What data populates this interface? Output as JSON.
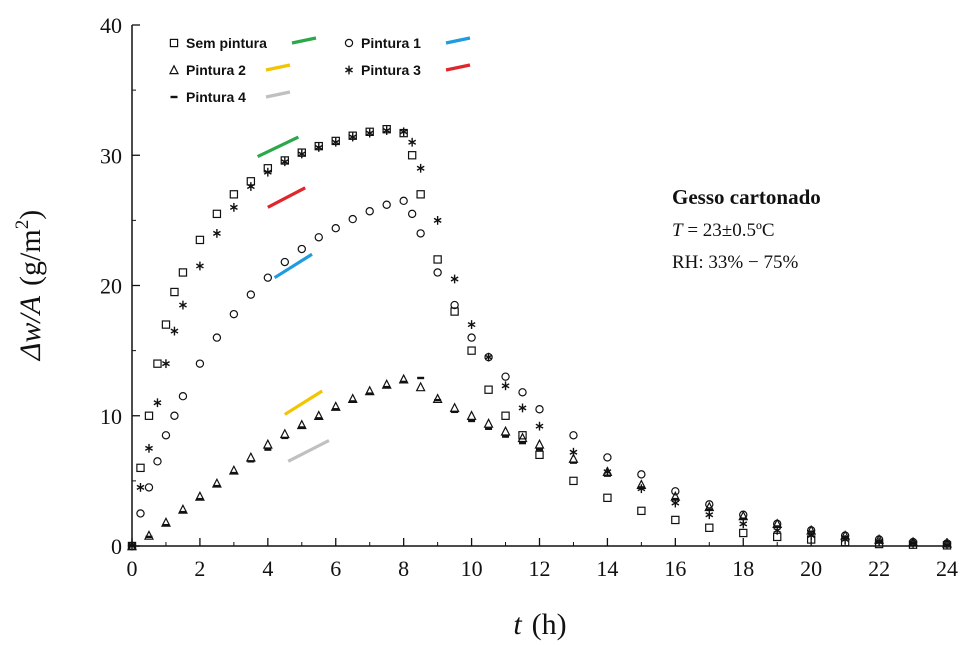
{
  "chart_data": {
    "type": "scatter",
    "xlabel_symbol": "t",
    "xlabel_unit": "(h)",
    "ylabel_symbol": "Δw/A",
    "ylabel_unit": "(g/m",
    "ylabel_unit_sup": "2",
    "ylabel_unit_close": ")",
    "xlim": [
      0,
      24
    ],
    "ylim": [
      0,
      40
    ],
    "x_ticks": [
      0,
      2,
      4,
      6,
      8,
      10,
      12,
      14,
      16,
      18,
      20,
      22,
      24
    ],
    "y_ticks": [
      0,
      10,
      20,
      30,
      40
    ],
    "grid": false,
    "legend_position": "top-left",
    "annotation": {
      "title": "Gesso cartonado",
      "line1_symbol": "T",
      "line1_rest": " = 23±0.5ºC",
      "line2": "RH: 33% − 75%"
    },
    "series": [
      {
        "name": "Sem pintura",
        "marker": "square",
        "color": "#2aa84a",
        "slope_line": [
          [
            3.7,
            29.9
          ],
          [
            4.9,
            31.4
          ]
        ],
        "x": [
          0,
          0.25,
          0.5,
          0.75,
          1,
          1.25,
          1.5,
          2,
          2.5,
          3,
          3.5,
          4,
          4.5,
          5,
          5.5,
          6,
          6.5,
          7,
          7.5,
          8,
          8.25,
          8.5,
          9,
          9.5,
          10,
          10.5,
          11,
          11.5,
          12,
          13,
          14,
          15,
          16,
          17,
          18,
          19,
          20,
          21,
          22,
          23,
          24
        ],
        "y": [
          0,
          6,
          10,
          14,
          17,
          19.5,
          21,
          23.5,
          25.5,
          27,
          28,
          29,
          29.6,
          30.2,
          30.7,
          31.1,
          31.5,
          31.8,
          32,
          31.7,
          30,
          27,
          22,
          18,
          15,
          12,
          10,
          8.5,
          7,
          5,
          3.7,
          2.7,
          2,
          1.4,
          1,
          0.7,
          0.5,
          0.3,
          0.15,
          0.1,
          0.05
        ]
      },
      {
        "name": "Pintura 1",
        "marker": "circle",
        "color": "#1f9be0",
        "slope_line": [
          [
            4.2,
            20.6
          ],
          [
            5.3,
            22.4
          ]
        ],
        "x": [
          0,
          0.25,
          0.5,
          0.75,
          1,
          1.25,
          1.5,
          2,
          2.5,
          3,
          3.5,
          4,
          4.5,
          5,
          5.5,
          6,
          6.5,
          7,
          7.5,
          8,
          8.25,
          8.5,
          9,
          9.5,
          10,
          10.5,
          11,
          11.5,
          12,
          13,
          14,
          15,
          16,
          17,
          18,
          19,
          20,
          21,
          22,
          23,
          24
        ],
        "y": [
          0,
          2.5,
          4.5,
          6.5,
          8.5,
          10,
          11.5,
          14,
          16,
          17.8,
          19.3,
          20.6,
          21.8,
          22.8,
          23.7,
          24.4,
          25.1,
          25.7,
          26.2,
          26.5,
          25.5,
          24,
          21,
          18.5,
          16,
          14.5,
          13,
          11.8,
          10.5,
          8.5,
          6.8,
          5.5,
          4.2,
          3.2,
          2.4,
          1.7,
          1.2,
          0.8,
          0.5,
          0.3,
          0.2
        ]
      },
      {
        "name": "Pintura 2",
        "marker": "triangle",
        "color": "#f2c500",
        "slope_line": [
          [
            4.5,
            10.1
          ],
          [
            5.6,
            11.9
          ]
        ],
        "x": [
          0,
          0.5,
          1,
          1.5,
          2,
          2.5,
          3,
          3.5,
          4,
          4.5,
          5,
          5.5,
          6,
          6.5,
          7,
          7.5,
          8,
          8.5,
          9,
          9.5,
          10,
          10.5,
          11,
          11.5,
          12,
          13,
          14,
          15,
          16,
          17,
          18,
          19,
          20,
          21,
          22,
          23,
          24
        ],
        "y": [
          0,
          0.8,
          1.8,
          2.8,
          3.8,
          4.8,
          5.8,
          6.8,
          7.8,
          8.6,
          9.3,
          10,
          10.7,
          11.3,
          11.9,
          12.4,
          12.8,
          12.2,
          11.3,
          10.6,
          10,
          9.4,
          8.8,
          8.3,
          7.8,
          6.7,
          5.7,
          4.7,
          3.8,
          3,
          2.3,
          1.7,
          1.2,
          0.8,
          0.5,
          0.3,
          0.2
        ]
      },
      {
        "name": "Pintura 3",
        "marker": "asterisk",
        "color": "#e0262b",
        "slope_line": [
          [
            4,
            26
          ],
          [
            5.1,
            27.5
          ]
        ],
        "x": [
          0,
          0.25,
          0.5,
          0.75,
          1,
          1.25,
          1.5,
          2,
          2.5,
          3,
          3.5,
          4,
          4.5,
          5,
          5.5,
          6,
          6.5,
          7,
          7.5,
          8,
          8.25,
          8.5,
          9,
          9.5,
          10,
          10.5,
          11,
          11.5,
          12,
          13,
          14,
          15,
          16,
          17,
          18,
          19,
          20,
          21,
          22,
          23,
          24
        ],
        "y": [
          0,
          4.5,
          7.5,
          11,
          14,
          16.5,
          18.5,
          21.5,
          24,
          26,
          27.6,
          28.7,
          29.5,
          30.1,
          30.6,
          31,
          31.4,
          31.7,
          31.9,
          31.8,
          31,
          29,
          25,
          20.5,
          17,
          14.5,
          12.3,
          10.6,
          9.2,
          7.2,
          5.7,
          4.4,
          3.3,
          2.4,
          1.7,
          1.2,
          0.8,
          0.5,
          0.3,
          0.2,
          0.1
        ]
      },
      {
        "name": "Pintura 4",
        "marker": "dash",
        "color": "#c0c0c0",
        "slope_line": [
          [
            4.6,
            6.5
          ],
          [
            5.8,
            8.1
          ]
        ],
        "x": [
          0,
          0.5,
          1,
          1.5,
          2,
          2.5,
          3,
          3.5,
          4,
          4.5,
          5,
          5.5,
          6,
          6.5,
          7,
          7.5,
          8,
          8.5,
          9,
          9.5,
          10,
          10.5,
          11,
          11.5,
          12,
          13,
          14,
          15,
          16,
          17,
          18,
          19,
          20,
          21,
          22,
          23,
          24
        ],
        "y": [
          0,
          0.7,
          1.6,
          2.6,
          3.6,
          4.6,
          5.6,
          6.5,
          7.4,
          8.3,
          9.1,
          9.8,
          10.5,
          11.1,
          11.7,
          12.2,
          12.6,
          12.9,
          11.2,
          10.3,
          9.6,
          9,
          8.4,
          7.9,
          7.4,
          6.4,
          5.4,
          4.5,
          3.6,
          2.8,
          2.1,
          1.5,
          1.1,
          0.7,
          0.4,
          0.2,
          0.1
        ]
      }
    ]
  }
}
